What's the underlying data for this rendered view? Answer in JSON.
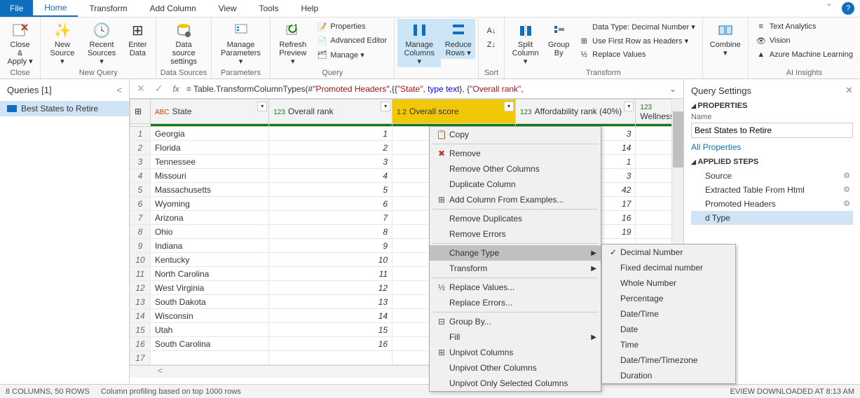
{
  "colors": {
    "primary": "#106ebe",
    "highlight": "#cde6f7",
    "selected_col": "#f0c808",
    "grid_header": "#f3f3f3"
  },
  "menubar": {
    "file": "File",
    "items": [
      "Home",
      "Transform",
      "Add Column",
      "View",
      "Tools",
      "Help"
    ],
    "active_index": 0
  },
  "ribbon": {
    "close": {
      "label1": "Close &",
      "label2": "Apply ▾",
      "group": "Close"
    },
    "new_query": {
      "buttons": [
        {
          "label1": "New",
          "label2": "Source ▾"
        },
        {
          "label1": "Recent",
          "label2": "Sources ▾"
        },
        {
          "label1": "Enter",
          "label2": "Data"
        }
      ],
      "group": "New Query"
    },
    "data_sources": {
      "label1": "Data source",
      "label2": "settings",
      "group": "Data Sources"
    },
    "parameters": {
      "label1": "Manage",
      "label2": "Parameters ▾",
      "group": "Parameters"
    },
    "query": {
      "refresh": {
        "label1": "Refresh",
        "label2": "Preview ▾"
      },
      "items": [
        "Properties",
        "Advanced Editor",
        "Manage ▾"
      ],
      "group": "Query"
    },
    "manage_cols": {
      "label1": "Manage",
      "label2": "Columns ▾"
    },
    "reduce_rows": {
      "label1": "Reduce",
      "label2": "Rows ▾"
    },
    "sort": {
      "group": "Sort"
    },
    "split_col": {
      "label1": "Split",
      "label2": "Column ▾"
    },
    "group_by": {
      "label1": "Group",
      "label2": "By"
    },
    "transform": {
      "items": [
        "Data Type: Decimal Number ▾",
        "Use First Row as Headers ▾",
        "Replace Values"
      ],
      "group": "Transform"
    },
    "combine": {
      "label1": "Combine",
      "label2": "▾"
    },
    "ai": {
      "items": [
        "Text Analytics",
        "Vision",
        "Azure Machine Learning"
      ],
      "group": "AI Insights"
    }
  },
  "queries": {
    "title": "Queries [1]",
    "items": [
      "Best States to Retire"
    ]
  },
  "formula": {
    "prefix": "= Table.TransformColumnTypes(#",
    "q1": "\"Promoted Headers\"",
    "mid": ",{{",
    "q2": "\"State\"",
    "mid2": ", ",
    "kw": "type text",
    "mid3": "}, {",
    "q3": "\"Overall rank\"",
    "end": ","
  },
  "grid": {
    "columns": [
      {
        "type": "ABC",
        "name": "State",
        "width": 154
      },
      {
        "type": "123",
        "name": "Overall rank",
        "width": 160
      },
      {
        "type": "1.2",
        "name": "Overall score",
        "width": 160,
        "selected": true
      },
      {
        "type": "123",
        "name": "Affordability rank (40%)",
        "width": 156
      },
      {
        "type": "123",
        "name": "Wellness",
        "width": 50
      }
    ],
    "rows": [
      {
        "n": 1,
        "state": "Georgia",
        "rank": 1,
        "aff": 3
      },
      {
        "n": 2,
        "state": "Florida",
        "rank": 2,
        "aff": 14
      },
      {
        "n": 3,
        "state": "Tennessee",
        "rank": 3,
        "aff": 1
      },
      {
        "n": 4,
        "state": "Missouri",
        "rank": 4,
        "aff": 3
      },
      {
        "n": 5,
        "state": "Massachusetts",
        "rank": 5,
        "aff": 42
      },
      {
        "n": 6,
        "state": "Wyoming",
        "rank": 6,
        "aff": 17
      },
      {
        "n": 7,
        "state": "Arizona",
        "rank": 7,
        "aff": 16
      },
      {
        "n": 8,
        "state": "Ohio",
        "rank": 8,
        "aff": 19
      },
      {
        "n": 9,
        "state": "Indiana",
        "rank": 9,
        "aff": ""
      },
      {
        "n": 10,
        "state": "Kentucky",
        "rank": 10,
        "aff": ""
      },
      {
        "n": 11,
        "state": "North Carolina",
        "rank": 11,
        "aff": ""
      },
      {
        "n": 12,
        "state": "West Virginia",
        "rank": 12,
        "aff": ""
      },
      {
        "n": 13,
        "state": "South Dakota",
        "rank": 13,
        "aff": ""
      },
      {
        "n": 14,
        "state": "Wisconsin",
        "rank": 14,
        "aff": ""
      },
      {
        "n": 15,
        "state": "Utah",
        "rank": 15,
        "aff": ""
      },
      {
        "n": 16,
        "state": "South Carolina",
        "rank": 16,
        "aff": ""
      },
      {
        "n": 17,
        "state": "",
        "rank": "",
        "aff": ""
      }
    ]
  },
  "context_menu": {
    "items": [
      {
        "icon": "📋",
        "label": "Copy"
      },
      {
        "sep": true
      },
      {
        "icon": "✖",
        "label": "Remove",
        "icon_color": "#c0392b"
      },
      {
        "label": "Remove Other Columns"
      },
      {
        "label": "Duplicate Column"
      },
      {
        "icon": "⊞",
        "label": "Add Column From Examples..."
      },
      {
        "sep": true
      },
      {
        "label": "Remove Duplicates"
      },
      {
        "label": "Remove Errors"
      },
      {
        "sep": true
      },
      {
        "label": "Change Type",
        "submenu": true,
        "highlighted": true
      },
      {
        "label": "Transform",
        "submenu": true
      },
      {
        "sep": true
      },
      {
        "icon": "½",
        "label": "Replace Values..."
      },
      {
        "label": "Replace Errors..."
      },
      {
        "sep": true
      },
      {
        "icon": "⊟",
        "label": "Group By..."
      },
      {
        "label": "Fill",
        "submenu": true
      },
      {
        "icon": "⊞",
        "label": "Unpivot Columns"
      },
      {
        "label": "Unpivot Other Columns"
      },
      {
        "label": "Unpivot Only Selected Columns"
      }
    ]
  },
  "submenu": {
    "items": [
      {
        "checked": true,
        "label": "Decimal Number"
      },
      {
        "label": "Fixed decimal number",
        "highlighted": true
      },
      {
        "label": "Whole Number"
      },
      {
        "label": "Percentage"
      },
      {
        "sep": true
      },
      {
        "label": "Date/Time"
      },
      {
        "label": "Date"
      },
      {
        "label": "Time"
      },
      {
        "label": "Date/Time/Timezone"
      },
      {
        "label": "Duration"
      }
    ]
  },
  "settings": {
    "title": "Query Settings",
    "properties": "PROPERTIES",
    "name_label": "Name",
    "name_value": "Best States to Retire",
    "all_props": "All Properties",
    "applied_steps": "APPLIED STEPS",
    "steps": [
      {
        "label": "Source",
        "gear": true
      },
      {
        "label": "Extracted Table From Html",
        "gear": true
      },
      {
        "label": "Promoted Headers",
        "gear": true
      },
      {
        "label": "d Type",
        "active": true,
        "truncated": true
      }
    ]
  },
  "status": {
    "left": "8 COLUMNS, 50 ROWS",
    "mid": "Column profiling based on top 1000 rows",
    "right": "EVIEW DOWNLOADED AT 8:13 AM"
  }
}
